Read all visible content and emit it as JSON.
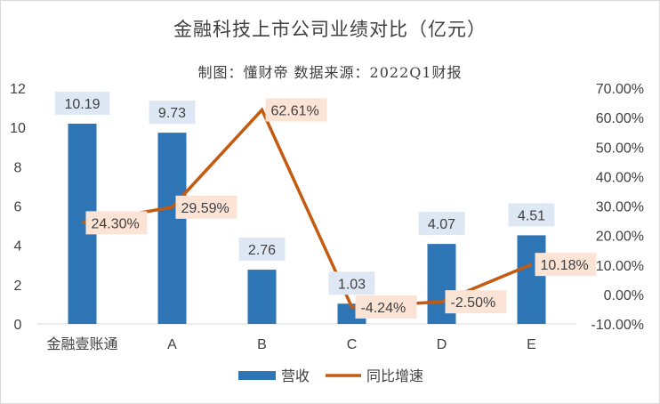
{
  "chart_data": {
    "type": "bar",
    "title": "金融科技上市公司业绩对比（亿元）",
    "subtitle": "制图：懂财帝   数据来源：2022Q1财报",
    "categories": [
      "金融壹账通",
      "A",
      "B",
      "C",
      "D",
      "E"
    ],
    "series": [
      {
        "name": "营收",
        "type": "bar",
        "axis": "left",
        "values": [
          10.19,
          9.73,
          2.76,
          1.03,
          4.07,
          4.51
        ],
        "labels": [
          "10.19",
          "9.73",
          "2.76",
          "1.03",
          "4.07",
          "4.51"
        ],
        "color": "#2e75b6"
      },
      {
        "name": "同比增速",
        "type": "line",
        "axis": "right",
        "values": [
          24.3,
          29.59,
          62.61,
          -4.24,
          -2.5,
          10.18
        ],
        "labels": [
          "24.30%",
          "29.59%",
          "62.61%",
          "-4.24%",
          "-2.50%",
          "10.18%"
        ],
        "color": "#c55a11"
      }
    ],
    "y_left": {
      "range": [
        0,
        12
      ],
      "ticks": [
        "0",
        "2",
        "4",
        "6",
        "8",
        "10",
        "12"
      ]
    },
    "y_right": {
      "range": [
        -10,
        70
      ],
      "ticks": [
        "-10.00%",
        "0.00%",
        "10.00%",
        "20.00%",
        "30.00%",
        "40.00%",
        "50.00%",
        "60.00%",
        "70.00%"
      ]
    },
    "legend_position": "bottom",
    "grid": false,
    "bar_label_bg": "#dde8f4",
    "line_label_bg": "#fbe3d5",
    "border_color": "#d9d9d9"
  }
}
